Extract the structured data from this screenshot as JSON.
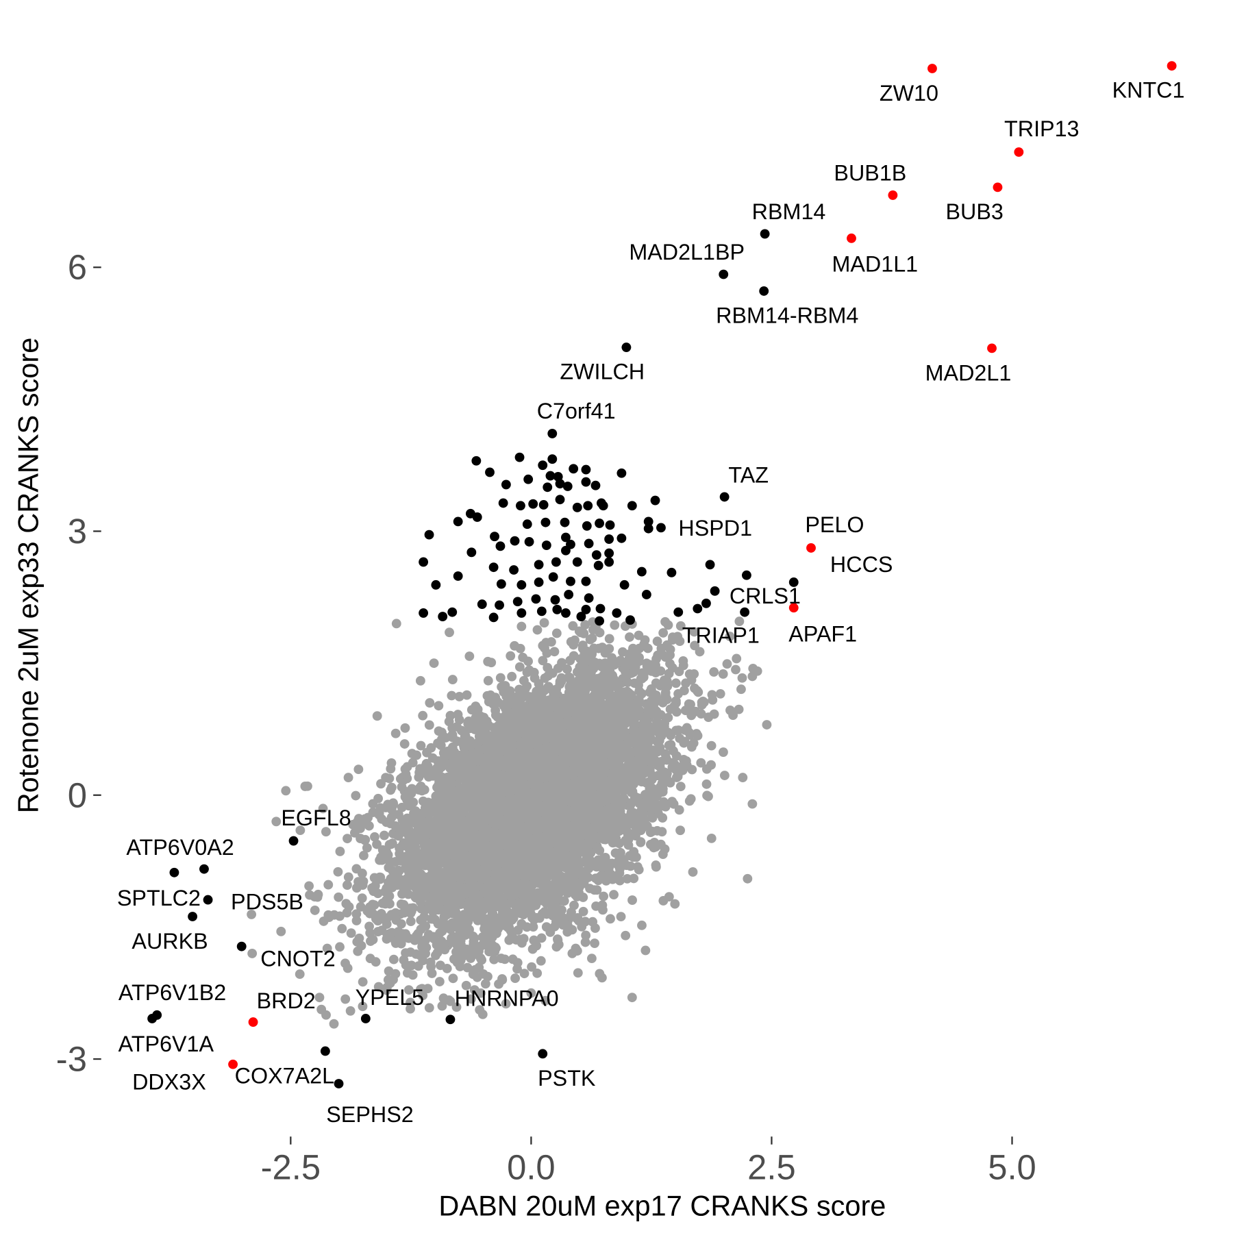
{
  "chart_data": {
    "type": "scatter",
    "title": "",
    "xlabel": "DABN 20uM exp17 CRANKS score",
    "ylabel": "Rotenone 2uM exp33 CRANKS score",
    "xlim": [
      -4.4,
      7.2
    ],
    "ylim": [
      -3.9,
      8.8
    ],
    "x_ticks": [
      {
        "value": -2.5,
        "label": "-2.5"
      },
      {
        "value": 0,
        "label": "0.0"
      },
      {
        "value": 2.5,
        "label": "2.5"
      },
      {
        "value": 5,
        "label": "5.0"
      }
    ],
    "y_ticks": [
      {
        "value": -3,
        "label": "-3"
      },
      {
        "value": 0,
        "label": "0"
      },
      {
        "value": 3,
        "label": "3"
      },
      {
        "value": 6,
        "label": "6"
      }
    ],
    "grid": false,
    "colors": {
      "background_genes": "#a0a0a0",
      "hit_genes": "#000000",
      "highlighted_genes": "#ff0000"
    },
    "background_distribution": {
      "n": 6000,
      "mean": [
        0.0,
        -0.1
      ],
      "sd": [
        0.72,
        0.78
      ],
      "correlation": 0.5,
      "x_range": [
        -3.0,
        2.7
      ],
      "y_range": [
        -2.5,
        2.0
      ]
    },
    "labeled_points": [
      {
        "gene": "ZW10",
        "x": 4.17,
        "y": 8.26,
        "group": "red"
      },
      {
        "gene": "KNTC1",
        "x": 6.66,
        "y": 8.29,
        "group": "red"
      },
      {
        "gene": "TRIP13",
        "x": 5.07,
        "y": 7.31,
        "group": "red"
      },
      {
        "gene": "BUB1B",
        "x": 3.76,
        "y": 6.82,
        "group": "red"
      },
      {
        "gene": "BUB3",
        "x": 4.85,
        "y": 6.91,
        "group": "red"
      },
      {
        "gene": "RBM14",
        "x": 2.43,
        "y": 6.38,
        "group": "black"
      },
      {
        "gene": "MAD2L1BP",
        "x": 2.0,
        "y": 5.92,
        "group": "black"
      },
      {
        "gene": "MAD1L1",
        "x": 3.33,
        "y": 6.33,
        "group": "red"
      },
      {
        "gene": "RBM14-RBM4",
        "x": 2.42,
        "y": 5.73,
        "group": "black"
      },
      {
        "gene": "MAD2L1",
        "x": 4.79,
        "y": 5.08,
        "group": "red"
      },
      {
        "gene": "ZWILCH",
        "x": 0.99,
        "y": 5.09,
        "group": "black"
      },
      {
        "gene": "C7orf41",
        "x": 0.22,
        "y": 4.11,
        "group": "black"
      },
      {
        "gene": "TAZ",
        "x": 2.01,
        "y": 3.39,
        "group": "black"
      },
      {
        "gene": "HSPD1",
        "x": 1.35,
        "y": 3.04,
        "group": "black"
      },
      {
        "gene": "PELO",
        "x": 2.91,
        "y": 2.81,
        "group": "red"
      },
      {
        "gene": "HCCS",
        "x": 2.73,
        "y": 2.42,
        "group": "black"
      },
      {
        "gene": "CRLS1",
        "x": 2.24,
        "y": 2.5,
        "group": "black"
      },
      {
        "gene": "APAF1",
        "x": 2.73,
        "y": 2.13,
        "group": "red"
      },
      {
        "gene": "TRIAP1",
        "x": 2.22,
        "y": 2.08,
        "group": "black"
      },
      {
        "gene": "EGFL8",
        "x": -2.47,
        "y": -0.52,
        "group": "black"
      },
      {
        "gene": "ATP6V0A2",
        "x": -3.71,
        "y": -0.88,
        "group": "black"
      },
      {
        "gene": "SPTLC2",
        "x": -3.36,
        "y": -1.19,
        "group": "black"
      },
      {
        "gene": "PDS5B",
        "x": -3.4,
        "y": -0.84,
        "group": "black"
      },
      {
        "gene": "AURKB",
        "x": -3.52,
        "y": -1.38,
        "group": "black"
      },
      {
        "gene": "CNOT2",
        "x": -3.01,
        "y": -1.72,
        "group": "black"
      },
      {
        "gene": "ATP6V1B2",
        "x": -3.89,
        "y": -2.5,
        "group": "black"
      },
      {
        "gene": "BRD2",
        "x": -2.89,
        "y": -2.58,
        "group": "red"
      },
      {
        "gene": "YPEL5",
        "x": -1.72,
        "y": -2.54,
        "group": "black"
      },
      {
        "gene": "HNRNPA0",
        "x": -0.84,
        "y": -2.55,
        "group": "black"
      },
      {
        "gene": "ATP6V1A",
        "x": -3.94,
        "y": -2.54,
        "group": "black"
      },
      {
        "gene": "DDX3X",
        "x": -3.1,
        "y": -3.06,
        "group": "red"
      },
      {
        "gene": "COX7A2L",
        "x": -2.14,
        "y": -2.91,
        "group": "black"
      },
      {
        "gene": "PSTK",
        "x": 0.12,
        "y": -2.94,
        "group": "black"
      },
      {
        "gene": "SEPHS2",
        "x": -2.0,
        "y": -3.28,
        "group": "black"
      }
    ],
    "unlabeled_hits": [
      [
        -0.57,
        3.8
      ],
      [
        -0.12,
        3.84
      ],
      [
        0.22,
        3.82
      ],
      [
        -0.43,
        3.67
      ],
      [
        0.12,
        3.75
      ],
      [
        -0.03,
        3.59
      ],
      [
        0.44,
        3.71
      ],
      [
        0.57,
        3.7
      ],
      [
        0.2,
        3.63
      ],
      [
        0.94,
        3.66
      ],
      [
        0.28,
        3.62
      ],
      [
        0.3,
        3.54
      ],
      [
        0.67,
        3.52
      ],
      [
        -0.26,
        3.53
      ],
      [
        0.38,
        3.51
      ],
      [
        0.17,
        3.5
      ],
      [
        0.57,
        3.56
      ],
      [
        1.29,
        3.35
      ],
      [
        1.05,
        3.29
      ],
      [
        0.73,
        3.32
      ],
      [
        0.75,
        3.29
      ],
      [
        0.59,
        3.29
      ],
      [
        0.13,
        3.3
      ],
      [
        0.02,
        3.31
      ],
      [
        -0.11,
        3.29
      ],
      [
        -0.29,
        3.32
      ],
      [
        0.48,
        3.27
      ],
      [
        0.3,
        3.36
      ],
      [
        -0.76,
        3.11
      ],
      [
        -0.63,
        3.2
      ],
      [
        -0.56,
        3.16
      ],
      [
        -0.04,
        3.08
      ],
      [
        0.15,
        3.1
      ],
      [
        0.35,
        3.1
      ],
      [
        0.58,
        3.06
      ],
      [
        0.71,
        3.09
      ],
      [
        0.82,
        3.07
      ],
      [
        1.22,
        3.11
      ],
      [
        1.22,
        3.03
      ],
      [
        -1.06,
        2.96
      ],
      [
        -0.38,
        2.94
      ],
      [
        -0.17,
        2.89
      ],
      [
        -0.32,
        2.83
      ],
      [
        -0.02,
        2.88
      ],
      [
        0.16,
        2.84
      ],
      [
        0.36,
        2.93
      ],
      [
        0.6,
        2.86
      ],
      [
        0.81,
        2.91
      ],
      [
        0.94,
        2.92
      ],
      [
        0.41,
        2.85
      ],
      [
        0.36,
        2.78
      ],
      [
        0.68,
        2.73
      ],
      [
        0.81,
        2.75
      ],
      [
        -0.62,
        2.76
      ],
      [
        -1.12,
        2.65
      ],
      [
        -0.39,
        2.59
      ],
      [
        -0.18,
        2.56
      ],
      [
        0.08,
        2.62
      ],
      [
        0.26,
        2.65
      ],
      [
        0.48,
        2.65
      ],
      [
        0.7,
        2.61
      ],
      [
        0.81,
        2.65
      ],
      [
        1.15,
        2.54
      ],
      [
        1.46,
        2.53
      ],
      [
        1.86,
        2.62
      ],
      [
        -0.76,
        2.49
      ],
      [
        -0.99,
        2.39
      ],
      [
        -0.31,
        2.4
      ],
      [
        -0.1,
        2.39
      ],
      [
        0.08,
        2.42
      ],
      [
        0.23,
        2.48
      ],
      [
        0.41,
        2.43
      ],
      [
        0.57,
        2.43
      ],
      [
        0.97,
        2.39
      ],
      [
        1.2,
        2.28
      ],
      [
        1.91,
        2.32
      ],
      [
        -0.51,
        2.17
      ],
      [
        -0.14,
        2.2
      ],
      [
        0.05,
        2.23
      ],
      [
        0.25,
        2.22
      ],
      [
        0.39,
        2.28
      ],
      [
        0.6,
        2.24
      ],
      [
        0.27,
        2.11
      ],
      [
        0.57,
        2.11
      ],
      [
        0.72,
        2.12
      ],
      [
        -0.33,
        2.16
      ],
      [
        -0.82,
        2.08
      ],
      [
        -1.12,
        2.07
      ],
      [
        -0.92,
        2.03
      ],
      [
        -0.39,
        2.02
      ],
      [
        -0.1,
        2.07
      ],
      [
        0.11,
        2.09
      ],
      [
        0.36,
        2.07
      ],
      [
        0.52,
        2.03
      ],
      [
        0.89,
        2.07
      ],
      [
        1.03,
        1.99
      ],
      [
        0.71,
        1.98
      ],
      [
        1.53,
        2.08
      ],
      [
        1.73,
        2.12
      ],
      [
        1.82,
        2.18
      ]
    ],
    "gray_outliers": [
      [
        -1.4,
        1.95
      ],
      [
        -0.85,
        1.85
      ],
      [
        -1.01,
        1.5
      ],
      [
        -1.15,
        1.3
      ],
      [
        2.45,
        0.8
      ],
      [
        2.2,
        0.2
      ],
      [
        2.3,
        -0.1
      ],
      [
        2.25,
        -0.95
      ],
      [
        -2.65,
        -0.3
      ],
      [
        -2.55,
        0.05
      ],
      [
        -2.35,
        0.1
      ],
      [
        -2.9,
        -1.8
      ],
      [
        -2.6,
        -1.55
      ],
      [
        -2.2,
        -2.3
      ],
      [
        -2.05,
        -2.6
      ],
      [
        1.05,
        -2.3
      ],
      [
        -0.3,
        -2.1
      ],
      [
        0.0,
        -2.25
      ],
      [
        1.9,
        1.4
      ],
      [
        2.3,
        1.35
      ],
      [
        1.7,
        1.7
      ],
      [
        -1.6,
        0.9
      ],
      [
        -1.9,
        0.2
      ],
      [
        -2.4,
        -0.4
      ]
    ]
  }
}
